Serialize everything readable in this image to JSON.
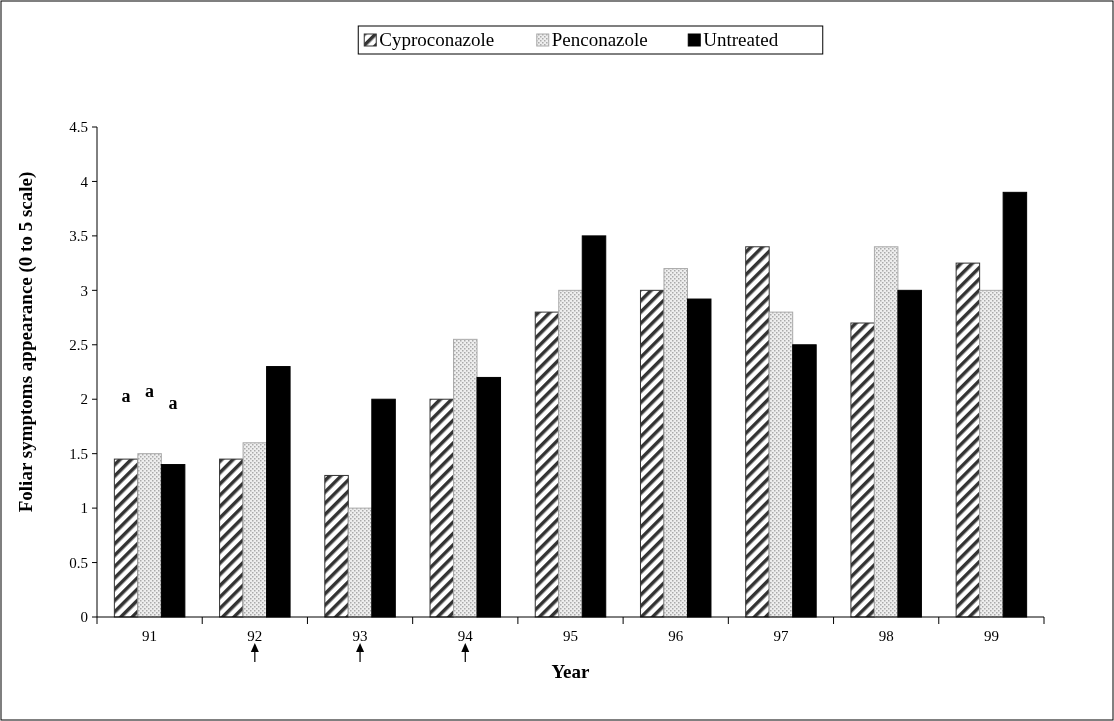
{
  "chart_data": {
    "type": "bar",
    "xlabel": "Year",
    "ylabel": "Foliar symptoms appearance (0 to 5 scale)",
    "categories": [
      "91",
      "92",
      "93",
      "94",
      "95",
      "96",
      "97",
      "98",
      "99"
    ],
    "series": [
      {
        "name": "Cyproconazole",
        "color": "#333333",
        "values": [
          1.45,
          1.45,
          1.3,
          2.0,
          2.8,
          3.0,
          3.4,
          2.7,
          3.25
        ]
      },
      {
        "name": "Penconazole",
        "color": "#aaaaaa",
        "values": [
          1.5,
          1.6,
          1.0,
          2.55,
          3.0,
          3.2,
          2.8,
          3.4,
          3.0
        ]
      },
      {
        "name": "Untreated",
        "color": "#000000",
        "values": [
          1.4,
          2.3,
          2.0,
          2.2,
          3.5,
          2.92,
          2.5,
          3.0,
          3.9
        ]
      }
    ],
    "ylim": [
      0,
      4.5
    ],
    "yticks": [
      0,
      0.5,
      1,
      1.5,
      2,
      2.5,
      3,
      3.5,
      4,
      4.5
    ],
    "annotations": [
      "a",
      "a",
      "a"
    ],
    "legend": "top",
    "grid": false
  }
}
